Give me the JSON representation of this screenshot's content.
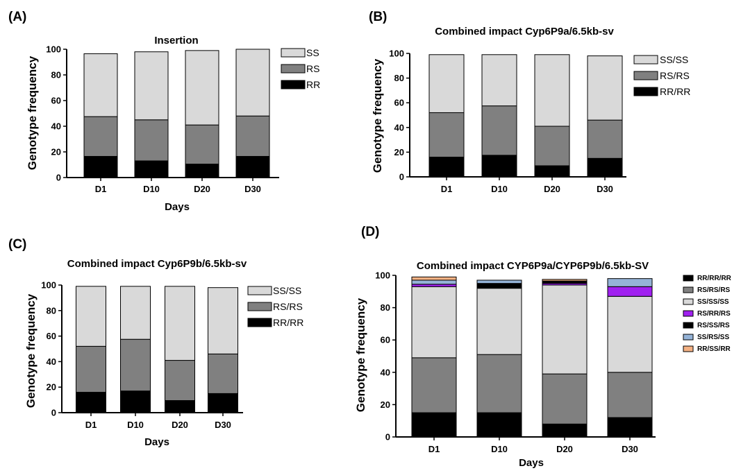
{
  "chart_data": [
    {
      "panel": "(A)",
      "type": "bar",
      "stacked": true,
      "title": "Insertion",
      "xlabel": "Days",
      "ylabel": "Genotype frequency",
      "categories": [
        "D1",
        "D10",
        "D20",
        "D30"
      ],
      "ylim": [
        0,
        100
      ],
      "yticks": [
        0,
        20,
        40,
        60,
        80,
        100
      ],
      "legend_position": "right",
      "series": [
        {
          "name": "RR",
          "color": "#000000",
          "values": [
            16.5,
            13,
            10.5,
            16.5
          ]
        },
        {
          "name": "RS",
          "color": "#808080",
          "values": [
            31,
            32,
            30.5,
            31.5
          ]
        },
        {
          "name": "SS",
          "color": "#d9d9d9",
          "values": [
            49,
            53,
            58,
            52
          ]
        }
      ]
    },
    {
      "panel": "(B)",
      "type": "bar",
      "stacked": true,
      "title": "Combined impact Cyp6P9a/6.5kb-sv",
      "xlabel": "",
      "ylabel": "Genotype frequency",
      "categories": [
        "D1",
        "D10",
        "D20",
        "D30"
      ],
      "ylim": [
        0,
        100
      ],
      "yticks": [
        0,
        20,
        40,
        60,
        80,
        100
      ],
      "legend_position": "right",
      "series": [
        {
          "name": "RR/RR",
          "color": "#000000",
          "values": [
            16,
            17.5,
            9,
            15
          ]
        },
        {
          "name": "RS/RS",
          "color": "#808080",
          "values": [
            36,
            40,
            32,
            31
          ]
        },
        {
          "name": "SS/SS",
          "color": "#d9d9d9",
          "values": [
            47,
            41.5,
            58,
            52
          ]
        }
      ]
    },
    {
      "panel": "(C)",
      "type": "bar",
      "stacked": true,
      "title": "Combined impact Cyp6P9b/6.5kb-sv",
      "xlabel": "Days",
      "ylabel": "Genotype frequency",
      "categories": [
        "D1",
        "D10",
        "D20",
        "D30"
      ],
      "ylim": [
        0,
        100
      ],
      "yticks": [
        0,
        20,
        40,
        60,
        80,
        100
      ],
      "legend_position": "right",
      "series": [
        {
          "name": "RR/RR",
          "color": "#000000",
          "values": [
            16,
            17,
            9.5,
            15
          ]
        },
        {
          "name": "RS/RS",
          "color": "#808080",
          "values": [
            36,
            40.5,
            31.5,
            31
          ]
        },
        {
          "name": "SS/SS",
          "color": "#d9d9d9",
          "values": [
            47,
            41.5,
            58,
            52
          ]
        }
      ]
    },
    {
      "panel": "(D)",
      "type": "bar",
      "stacked": true,
      "title": "Combined impact CYP6P9a/CYP6P9b/6.5kb-SV",
      "xlabel": "Days",
      "ylabel": "Genotype frequency",
      "categories": [
        "D1",
        "D10",
        "D20",
        "D30"
      ],
      "ylim": [
        0,
        100
      ],
      "yticks": [
        0,
        20,
        40,
        60,
        80,
        100
      ],
      "legend_position": "right",
      "series": [
        {
          "name": "RR/RR/RR",
          "color": "#000000",
          "values": [
            15,
            15,
            8,
            12
          ]
        },
        {
          "name": "RS/RS/RS",
          "color": "#808080",
          "values": [
            34,
            36,
            31,
            28
          ]
        },
        {
          "name": "SS/SS/SS",
          "color": "#d9d9d9",
          "values": [
            44,
            41,
            55,
            47
          ]
        },
        {
          "name": "RS/RR/RS",
          "color": "#a020f0",
          "values": [
            1.5,
            0,
            1,
            6
          ]
        },
        {
          "name": "RS/SS/RS",
          "color": "#000000",
          "values": [
            0,
            3,
            1.5,
            0
          ]
        },
        {
          "name": "SS/RS/SS",
          "color": "#95b3d7",
          "values": [
            2.5,
            2,
            0,
            5
          ]
        },
        {
          "name": "RR/SS/RR",
          "color": "#f4b183",
          "values": [
            2,
            0,
            1,
            0
          ]
        }
      ]
    }
  ]
}
